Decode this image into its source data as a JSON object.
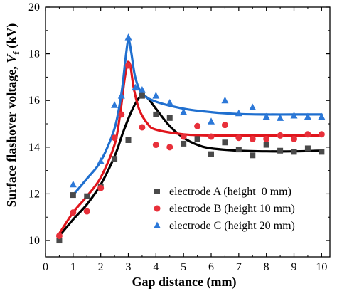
{
  "chart_data": {
    "type": "scatter",
    "xlabel": "Gap distance (mm)",
    "ylabel_main": "Surface flashover voltage, ",
    "ylabel_var": "V",
    "ylabel_sub": "f",
    "ylabel_unit": " (kV)",
    "xlim": [
      0,
      10.3
    ],
    "ylim": [
      9.3,
      20
    ],
    "x_ticks": [
      0,
      1,
      2,
      3,
      4,
      5,
      6,
      7,
      8,
      9,
      10
    ],
    "y_ticks": [
      10,
      12,
      14,
      16,
      18,
      20
    ],
    "legend_position": "bottom-right",
    "series": [
      {
        "name": "electrode A (height  0 mm)",
        "marker": "square",
        "color": "#4a4a4a",
        "fit_color": "#000000",
        "points": [
          [
            0.5,
            10.0
          ],
          [
            1,
            11.95
          ],
          [
            1.5,
            11.9
          ],
          [
            2,
            12.3
          ],
          [
            2.5,
            13.5
          ],
          [
            3,
            14.3
          ],
          [
            3.5,
            16.2
          ],
          [
            4,
            15.4
          ],
          [
            4.5,
            15.25
          ],
          [
            5,
            14.15
          ],
          [
            5.5,
            14.35
          ],
          [
            6,
            13.7
          ],
          [
            6.5,
            14.2
          ],
          [
            7,
            13.9
          ],
          [
            7.5,
            13.65
          ],
          [
            8,
            14.1
          ],
          [
            8.5,
            13.85
          ],
          [
            9,
            13.8
          ],
          [
            9.5,
            13.95
          ],
          [
            10,
            13.8
          ]
        ],
        "fit": [
          [
            0.5,
            10.2
          ],
          [
            1,
            10.9
          ],
          [
            1.5,
            11.55
          ],
          [
            2,
            12.4
          ],
          [
            2.5,
            13.6
          ],
          [
            2.8,
            14.6
          ],
          [
            3.1,
            15.5
          ],
          [
            3.35,
            16.05
          ],
          [
            3.5,
            16.2
          ],
          [
            3.7,
            16.1
          ],
          [
            4,
            15.65
          ],
          [
            4.5,
            14.9
          ],
          [
            5,
            14.4
          ],
          [
            5.5,
            14.1
          ],
          [
            6,
            13.95
          ],
          [
            7,
            13.85
          ],
          [
            8,
            13.82
          ],
          [
            9,
            13.82
          ],
          [
            10,
            13.85
          ]
        ]
      },
      {
        "name": "electrode B (height 10 mm)",
        "marker": "circle",
        "color": "#e8303a",
        "fit_color": "#e0151c",
        "points": [
          [
            0.5,
            10.2
          ],
          [
            1,
            11.2
          ],
          [
            1.5,
            11.25
          ],
          [
            2,
            12.25
          ],
          [
            2.5,
            14.4
          ],
          [
            2.75,
            15.4
          ],
          [
            3,
            17.5
          ],
          [
            3.5,
            14.85
          ],
          [
            4,
            14.1
          ],
          [
            4.5,
            14.0
          ],
          [
            5,
            14.45
          ],
          [
            5.5,
            14.9
          ],
          [
            6,
            14.45
          ],
          [
            6.5,
            14.95
          ],
          [
            7,
            14.4
          ],
          [
            7.5,
            14.35
          ],
          [
            8,
            14.35
          ],
          [
            8.5,
            14.5
          ],
          [
            9,
            14.35
          ],
          [
            9.5,
            14.55
          ],
          [
            10,
            14.55
          ]
        ],
        "fit": [
          [
            0.5,
            10.3
          ],
          [
            1,
            11.2
          ],
          [
            1.5,
            11.9
          ],
          [
            2,
            12.7
          ],
          [
            2.5,
            14.1
          ],
          [
            2.7,
            15.4
          ],
          [
            2.85,
            16.8
          ],
          [
            2.95,
            17.5
          ],
          [
            3.0,
            17.65
          ],
          [
            3.08,
            17.45
          ],
          [
            3.2,
            16.5
          ],
          [
            3.4,
            15.6
          ],
          [
            3.7,
            15.0
          ],
          [
            4,
            14.75
          ],
          [
            5,
            14.55
          ],
          [
            6,
            14.5
          ],
          [
            7,
            14.5
          ],
          [
            8,
            14.5
          ],
          [
            9,
            14.5
          ],
          [
            10,
            14.5
          ]
        ]
      },
      {
        "name": "electrode C (height 20 mm)",
        "marker": "triangle",
        "color": "#2c78d8",
        "fit_color": "#1f6fcf",
        "points": [
          [
            1,
            12.4
          ],
          [
            2,
            13.4
          ],
          [
            2.5,
            15.8
          ],
          [
            2.75,
            16.2
          ],
          [
            3,
            18.7
          ],
          [
            3.25,
            16.55
          ],
          [
            3.5,
            16.45
          ],
          [
            4,
            16.2
          ],
          [
            4.5,
            15.9
          ],
          [
            5,
            15.5
          ],
          [
            6,
            15.1
          ],
          [
            6.5,
            16.0
          ],
          [
            7,
            15.45
          ],
          [
            7.5,
            15.7
          ],
          [
            8,
            15.3
          ],
          [
            8.5,
            15.25
          ],
          [
            9,
            15.35
          ],
          [
            9.5,
            15.3
          ],
          [
            10,
            15.3
          ]
        ],
        "fit": [
          [
            1,
            11.95
          ],
          [
            1.5,
            12.65
          ],
          [
            2,
            13.4
          ],
          [
            2.5,
            14.8
          ],
          [
            2.75,
            16.3
          ],
          [
            2.9,
            17.8
          ],
          [
            3.0,
            18.6
          ],
          [
            3.1,
            18.1
          ],
          [
            3.25,
            17.0
          ],
          [
            3.5,
            16.3
          ],
          [
            4,
            15.95
          ],
          [
            5,
            15.65
          ],
          [
            6,
            15.5
          ],
          [
            7,
            15.42
          ],
          [
            8,
            15.4
          ],
          [
            9,
            15.4
          ],
          [
            10,
            15.4
          ]
        ]
      }
    ]
  }
}
